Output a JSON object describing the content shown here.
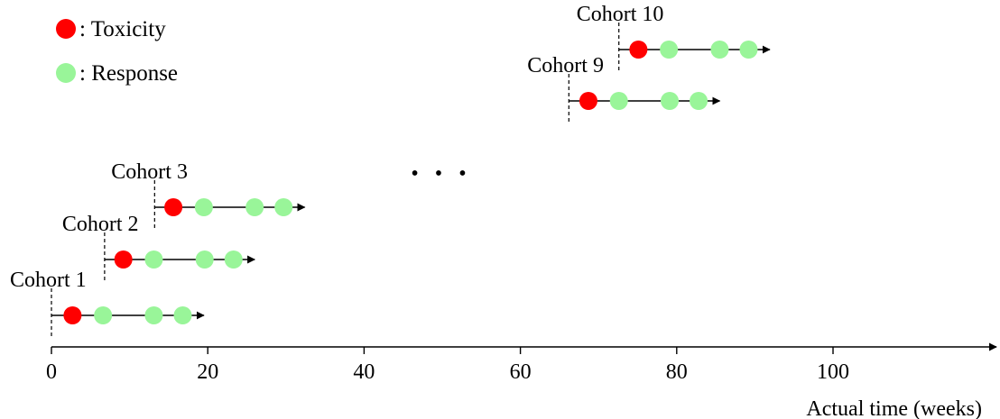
{
  "legend": [
    {
      "label": ": Toxicity",
      "color": "#ff0000"
    },
    {
      "label": ": Response",
      "color": "#99f599"
    }
  ],
  "x_axis": {
    "label": "Actual time (weeks)",
    "ticks": [
      0,
      20,
      40,
      60,
      80,
      100
    ],
    "range": [
      0,
      121
    ]
  },
  "ellipsis": "• • •",
  "cohorts": [
    {
      "label": "Cohort 1",
      "start": 0,
      "events": [
        {
          "t": 2.7,
          "type": "toxicity"
        },
        {
          "t": 6.6,
          "type": "response"
        },
        {
          "t": 13.1,
          "type": "response"
        },
        {
          "t": 16.8,
          "type": "response"
        }
      ],
      "end": 19.5
    },
    {
      "label": "Cohort 2",
      "start": 6.8,
      "events": [
        {
          "t": 9.2,
          "type": "toxicity"
        },
        {
          "t": 13.1,
          "type": "response"
        },
        {
          "t": 19.6,
          "type": "response"
        },
        {
          "t": 23.3,
          "type": "response"
        }
      ],
      "end": 26
    },
    {
      "label": "Cohort 3",
      "start": 13.2,
      "events": [
        {
          "t": 15.6,
          "type": "toxicity"
        },
        {
          "t": 19.5,
          "type": "response"
        },
        {
          "t": 26,
          "type": "response"
        },
        {
          "t": 29.7,
          "type": "response"
        }
      ],
      "end": 32.4
    },
    {
      "label": "Cohort 9",
      "start": 66.2,
      "events": [
        {
          "t": 68.7,
          "type": "toxicity"
        },
        {
          "t": 72.6,
          "type": "response"
        },
        {
          "t": 79.1,
          "type": "response"
        },
        {
          "t": 82.8,
          "type": "response"
        }
      ],
      "end": 85.5
    },
    {
      "label": "Cohort 10",
      "start": 72.6,
      "events": [
        {
          "t": 75.1,
          "type": "toxicity"
        },
        {
          "t": 79,
          "type": "response"
        },
        {
          "t": 85.5,
          "type": "response"
        },
        {
          "t": 89.2,
          "type": "response"
        }
      ],
      "end": 91.9
    }
  ]
}
